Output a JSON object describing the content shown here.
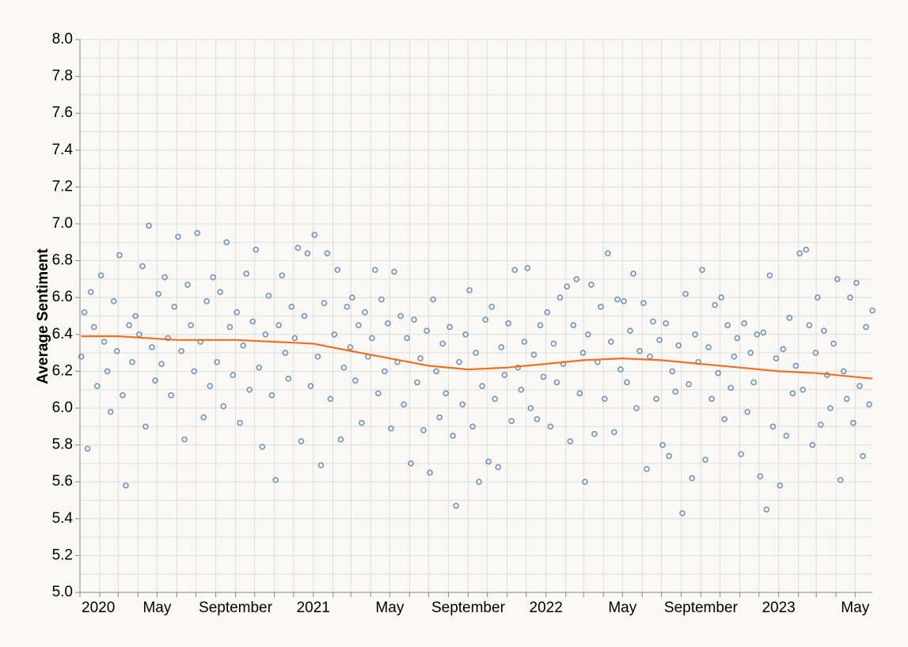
{
  "chart_data": {
    "type": "scatter",
    "y_label": "Average Sentiment",
    "ylim": [
      5.0,
      8.0
    ],
    "yticks": [
      {
        "value": 5.0,
        "label": "5.0"
      },
      5.1,
      {
        "value": 5.2,
        "label": "5.2"
      },
      5.3,
      {
        "value": 5.4,
        "label": "5.4"
      },
      5.5,
      {
        "value": 5.6,
        "label": "5.6"
      },
      5.7,
      {
        "value": 5.8,
        "label": "5.8"
      },
      5.9,
      {
        "value": 6.0,
        "label": "6.0"
      },
      6.1,
      {
        "value": 6.2,
        "label": "6.2"
      },
      6.3,
      {
        "value": 6.4,
        "label": "6.4"
      },
      6.5,
      {
        "value": 6.6,
        "label": "6.6"
      },
      6.7,
      {
        "value": 6.8,
        "label": "6.8"
      },
      6.9,
      {
        "value": 7.0,
        "label": "7.0"
      },
      7.1,
      {
        "value": 7.2,
        "label": "7.2"
      },
      7.3,
      {
        "value": 7.4,
        "label": "7.4"
      },
      7.5,
      {
        "value": 7.6,
        "label": "7.6"
      },
      7.7,
      {
        "value": 7.8,
        "label": "7.8"
      },
      7.9,
      {
        "value": 8.0,
        "label": "8.0"
      }
    ],
    "xlim": [
      "2020-01-01",
      "2023-05-28"
    ],
    "xticks": [
      {
        "value": "2020-01-01",
        "label": "2020"
      },
      "2020-02-01",
      "2020-03-01",
      "2020-04-01",
      {
        "value": "2020-05-01",
        "label": "May"
      },
      "2020-06-01",
      "2020-07-01",
      "2020-08-01",
      {
        "value": "2020-09-01",
        "label": "September"
      },
      "2020-10-01",
      "2020-11-01",
      "2020-12-01",
      {
        "value": "2021-01-01",
        "label": "2021"
      },
      "2021-02-01",
      "2021-03-01",
      "2021-04-01",
      {
        "value": "2021-05-01",
        "label": "May"
      },
      "2021-06-01",
      "2021-07-01",
      "2021-08-01",
      {
        "value": "2021-09-01",
        "label": "September"
      },
      "2021-10-01",
      "2021-11-01",
      "2021-12-01",
      {
        "value": "2022-01-01",
        "label": "2022"
      },
      "2022-02-01",
      "2022-03-01",
      "2022-04-01",
      {
        "value": "2022-05-01",
        "label": "May"
      },
      "2022-06-01",
      "2022-07-01",
      "2022-08-01",
      {
        "value": "2022-09-01",
        "label": "September"
      },
      "2022-10-01",
      "2022-11-01",
      "2022-12-01",
      {
        "value": "2023-01-01",
        "label": "2023"
      },
      "2023-02-01",
      "2023-03-01",
      "2023-04-01",
      {
        "value": "2023-05-01",
        "label": "May"
      }
    ],
    "grid": true,
    "points": {
      "color": "#5a82b0",
      "x": [
        "2020-01-03",
        "2020-01-08",
        "2020-01-13",
        "2020-01-18",
        "2020-01-23",
        "2020-01-28",
        "2020-02-03",
        "2020-02-08",
        "2020-02-13",
        "2020-02-18",
        "2020-02-23",
        "2020-02-28",
        "2020-03-03",
        "2020-03-08",
        "2020-03-13",
        "2020-03-18",
        "2020-03-23",
        "2020-03-28",
        "2020-04-03",
        "2020-04-08",
        "2020-04-13",
        "2020-04-18",
        "2020-04-23",
        "2020-04-28",
        "2020-05-03",
        "2020-05-08",
        "2020-05-13",
        "2020-05-18",
        "2020-05-23",
        "2020-05-28",
        "2020-06-03",
        "2020-06-08",
        "2020-06-13",
        "2020-06-18",
        "2020-06-23",
        "2020-06-28",
        "2020-07-03",
        "2020-07-08",
        "2020-07-13",
        "2020-07-18",
        "2020-07-23",
        "2020-07-28",
        "2020-08-03",
        "2020-08-08",
        "2020-08-13",
        "2020-08-18",
        "2020-08-23",
        "2020-08-28",
        "2020-09-03",
        "2020-09-08",
        "2020-09-13",
        "2020-09-18",
        "2020-09-23",
        "2020-09-28",
        "2020-10-03",
        "2020-10-08",
        "2020-10-13",
        "2020-10-18",
        "2020-10-23",
        "2020-10-28",
        "2020-11-03",
        "2020-11-08",
        "2020-11-13",
        "2020-11-18",
        "2020-11-23",
        "2020-11-28",
        "2020-12-03",
        "2020-12-08",
        "2020-12-13",
        "2020-12-18",
        "2020-12-23",
        "2020-12-28",
        "2021-01-03",
        "2021-01-08",
        "2021-01-13",
        "2021-01-18",
        "2021-01-23",
        "2021-01-28",
        "2021-02-03",
        "2021-02-08",
        "2021-02-13",
        "2021-02-18",
        "2021-02-23",
        "2021-02-28",
        "2021-03-03",
        "2021-03-08",
        "2021-03-13",
        "2021-03-18",
        "2021-03-23",
        "2021-03-28",
        "2021-04-03",
        "2021-04-08",
        "2021-04-13",
        "2021-04-18",
        "2021-04-23",
        "2021-04-28",
        "2021-05-03",
        "2021-05-08",
        "2021-05-13",
        "2021-05-18",
        "2021-05-23",
        "2021-05-28",
        "2021-06-03",
        "2021-06-08",
        "2021-06-13",
        "2021-06-18",
        "2021-06-23",
        "2021-06-28",
        "2021-07-03",
        "2021-07-08",
        "2021-07-13",
        "2021-07-18",
        "2021-07-23",
        "2021-07-28",
        "2021-08-03",
        "2021-08-08",
        "2021-08-13",
        "2021-08-18",
        "2021-08-23",
        "2021-08-28",
        "2021-09-03",
        "2021-09-08",
        "2021-09-13",
        "2021-09-18",
        "2021-09-23",
        "2021-09-28",
        "2021-10-03",
        "2021-10-08",
        "2021-10-13",
        "2021-10-18",
        "2021-10-23",
        "2021-10-28",
        "2021-11-03",
        "2021-11-08",
        "2021-11-13",
        "2021-11-18",
        "2021-11-23",
        "2021-11-28",
        "2021-12-03",
        "2021-12-08",
        "2021-12-13",
        "2021-12-18",
        "2021-12-23",
        "2021-12-28",
        "2022-01-03",
        "2022-01-08",
        "2022-01-13",
        "2022-01-18",
        "2022-01-23",
        "2022-01-28",
        "2022-02-03",
        "2022-02-08",
        "2022-02-13",
        "2022-02-18",
        "2022-02-23",
        "2022-02-28",
        "2022-03-03",
        "2022-03-08",
        "2022-03-13",
        "2022-03-18",
        "2022-03-23",
        "2022-03-28",
        "2022-04-03",
        "2022-04-08",
        "2022-04-13",
        "2022-04-18",
        "2022-04-23",
        "2022-04-28",
        "2022-05-03",
        "2022-05-08",
        "2022-05-13",
        "2022-05-18",
        "2022-05-23",
        "2022-05-28",
        "2022-06-03",
        "2022-06-08",
        "2022-06-13",
        "2022-06-18",
        "2022-06-23",
        "2022-06-28",
        "2022-07-03",
        "2022-07-08",
        "2022-07-13",
        "2022-07-18",
        "2022-07-23",
        "2022-07-28",
        "2022-08-03",
        "2022-08-08",
        "2022-08-13",
        "2022-08-18",
        "2022-08-23",
        "2022-08-28",
        "2022-09-03",
        "2022-09-08",
        "2022-09-13",
        "2022-09-18",
        "2022-09-23",
        "2022-09-28",
        "2022-10-03",
        "2022-10-08",
        "2022-10-13",
        "2022-10-18",
        "2022-10-23",
        "2022-10-28",
        "2022-11-03",
        "2022-11-08",
        "2022-11-13",
        "2022-11-18",
        "2022-11-23",
        "2022-11-28",
        "2022-12-03",
        "2022-12-08",
        "2022-12-13",
        "2022-12-18",
        "2022-12-23",
        "2022-12-28",
        "2023-01-03",
        "2023-01-08",
        "2023-01-13",
        "2023-01-18",
        "2023-01-23",
        "2023-01-28",
        "2023-02-03",
        "2023-02-08",
        "2023-02-13",
        "2023-02-18",
        "2023-02-23",
        "2023-02-28",
        "2023-03-03",
        "2023-03-08",
        "2023-03-13",
        "2023-03-18",
        "2023-03-23",
        "2023-03-28",
        "2023-04-03",
        "2023-04-08",
        "2023-04-13",
        "2023-04-18",
        "2023-04-23",
        "2023-04-28",
        "2023-05-03",
        "2023-05-08",
        "2023-05-13",
        "2023-05-18",
        "2023-05-23",
        "2023-05-28"
      ],
      "values": [
        6.28,
        6.52,
        5.78,
        6.63,
        6.44,
        6.12,
        6.72,
        6.36,
        6.2,
        5.98,
        6.58,
        6.31,
        6.83,
        6.07,
        5.58,
        6.45,
        6.25,
        6.5,
        6.4,
        6.77,
        5.9,
        6.99,
        6.33,
        6.15,
        6.62,
        6.24,
        6.71,
        6.38,
        6.07,
        6.55,
        6.93,
        6.31,
        5.83,
        6.67,
        6.45,
        6.2,
        6.95,
        6.36,
        5.95,
        6.58,
        6.12,
        6.71,
        6.25,
        6.63,
        6.01,
        6.9,
        6.44,
        6.18,
        6.52,
        5.92,
        6.34,
        6.73,
        6.1,
        6.47,
        6.86,
        6.22,
        5.79,
        6.4,
        6.61,
        6.07,
        5.61,
        6.45,
        6.72,
        6.3,
        6.16,
        6.55,
        6.38,
        6.87,
        5.82,
        6.5,
        6.84,
        6.12,
        6.94,
        6.28,
        5.69,
        6.57,
        6.84,
        6.05,
        6.4,
        6.75,
        5.83,
        6.22,
        6.55,
        6.33,
        6.6,
        6.15,
        6.45,
        5.92,
        6.52,
        6.28,
        6.38,
        6.75,
        6.08,
        6.59,
        6.2,
        6.46,
        5.89,
        6.74,
        6.25,
        6.5,
        6.02,
        6.38,
        5.7,
        6.48,
        6.14,
        6.27,
        5.88,
        6.42,
        5.65,
        6.59,
        6.2,
        5.95,
        6.35,
        6.08,
        6.44,
        5.85,
        5.47,
        6.25,
        6.02,
        6.4,
        6.64,
        5.9,
        6.3,
        5.6,
        6.12,
        6.48,
        5.71,
        6.55,
        6.05,
        5.68,
        6.33,
        6.18,
        6.46,
        5.93,
        6.75,
        6.22,
        6.1,
        6.36,
        6.76,
        6.0,
        6.29,
        5.94,
        6.45,
        6.17,
        6.52,
        5.9,
        6.35,
        6.14,
        6.6,
        6.24,
        6.66,
        5.82,
        6.45,
        6.7,
        6.08,
        6.3,
        5.6,
        6.4,
        6.67,
        5.86,
        6.25,
        6.55,
        6.05,
        6.84,
        6.36,
        5.87,
        6.59,
        6.21,
        6.58,
        6.14,
        6.42,
        6.73,
        6.0,
        6.31,
        6.57,
        5.67,
        6.28,
        6.47,
        6.05,
        6.37,
        5.8,
        6.46,
        5.74,
        6.2,
        6.09,
        6.34,
        5.43,
        6.62,
        6.13,
        5.62,
        6.4,
        6.25,
        6.75,
        5.72,
        6.33,
        6.05,
        6.56,
        6.19,
        6.6,
        5.94,
        6.45,
        6.11,
        6.28,
        6.38,
        5.75,
        6.46,
        5.98,
        6.3,
        6.14,
        6.4,
        5.63,
        6.41,
        5.45,
        6.72,
        5.9,
        6.27,
        5.58,
        6.32,
        5.85,
        6.49,
        6.08,
        6.23,
        6.84,
        6.1,
        6.86,
        6.45,
        5.8,
        6.3,
        6.6,
        5.91,
        6.42,
        6.18,
        6.0,
        6.35,
        6.7,
        5.61,
        6.2,
        6.05,
        6.6,
        5.92,
        6.68,
        6.12,
        5.74,
        6.44,
        6.02,
        6.53
      ]
    },
    "trend": {
      "color": "#f0701e",
      "x": [
        "2020-01-03",
        "2020-03-01",
        "2020-06-01",
        "2020-09-01",
        "2020-11-01",
        "2021-01-01",
        "2021-03-01",
        "2021-05-01",
        "2021-07-01",
        "2021-09-01",
        "2021-11-01",
        "2022-01-01",
        "2022-03-01",
        "2022-05-01",
        "2022-07-01",
        "2022-09-01",
        "2022-11-01",
        "2023-01-01",
        "2023-03-01",
        "2023-05-28"
      ],
      "values": [
        6.39,
        6.39,
        6.37,
        6.37,
        6.36,
        6.35,
        6.31,
        6.27,
        6.23,
        6.21,
        6.22,
        6.24,
        6.26,
        6.27,
        6.26,
        6.24,
        6.22,
        6.2,
        6.19,
        6.16
      ]
    }
  }
}
